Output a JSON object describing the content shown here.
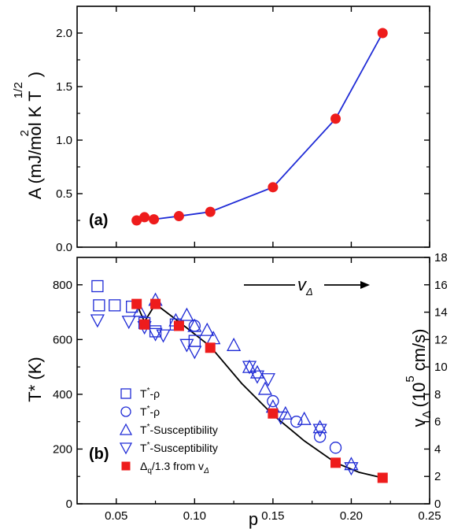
{
  "colors": {
    "blue": "#1f2bd6",
    "red": "#ee1c1c",
    "black": "#000000"
  },
  "chart_data": [
    {
      "panel": "top",
      "type": "line",
      "panel_label": "(a)",
      "ylabel": {
        "main": "A (mJ/mol K T",
        "sup1": "2",
        "sup2": "1/2",
        "close": ")"
      },
      "xlim": [
        0.025,
        0.25
      ],
      "ylim": [
        0.0,
        2.25
      ],
      "yticks": [
        "0.0",
        "0.5",
        "1.0",
        "1.5",
        "2.0"
      ],
      "series": [
        {
          "marker": "circle-filled",
          "color": "#ee1c1c",
          "line_color": "#1f2bd6",
          "x": [
            0.063,
            0.068,
            0.074,
            0.09,
            0.11,
            0.15,
            0.19,
            0.22
          ],
          "y": [
            0.25,
            0.28,
            0.26,
            0.29,
            0.33,
            0.56,
            1.2,
            2.0
          ]
        }
      ]
    },
    {
      "panel": "bottom",
      "type": "scatter",
      "panel_label": "(b)",
      "ylabel": "T* (K)",
      "y2label": {
        "main": "v",
        "sub": "Δ",
        "paren": "(10",
        "sup": "5",
        "unit": "cm/s)"
      },
      "xlabel": "p",
      "xlim": [
        0.025,
        0.25
      ],
      "ylim": [
        0,
        900
      ],
      "y2lim": [
        0,
        18
      ],
      "xticks": [
        "0.05",
        "0.10",
        "0.15",
        "0.20",
        "0.25"
      ],
      "yticks": [
        "0",
        "200",
        "400",
        "600",
        "800"
      ],
      "y2ticks": [
        "0",
        "2",
        "4",
        "6",
        "8",
        "10",
        "12",
        "14",
        "16",
        "18"
      ],
      "annotation": {
        "main": "v",
        "sub": "Δ"
      },
      "legend": [
        {
          "marker": "square-open",
          "main": "T",
          "sup": "*",
          "rest": "-ρ"
        },
        {
          "marker": "circle-open",
          "main": "T",
          "sup": "*",
          "rest": "-ρ"
        },
        {
          "marker": "triangle-up-open",
          "main": "T",
          "sup": "*",
          "rest": "-Susceptibility"
        },
        {
          "marker": "triangle-down-open",
          "main": "T",
          "sup": "*",
          "rest": "-Susceptibility"
        },
        {
          "marker": "square-filled",
          "main": "Δ",
          "sub": "q",
          "rest": "/1.3 from v",
          "sub2": "Δ"
        }
      ],
      "series": [
        {
          "marker": "square-open",
          "color": "#1f2bd6",
          "x": [
            0.038,
            0.039,
            0.049,
            0.06,
            0.068,
            0.075,
            0.088,
            0.1
          ],
          "y": [
            795,
            725,
            725,
            720,
            660,
            630,
            655,
            595
          ]
        },
        {
          "marker": "circle-open",
          "color": "#1f2bd6",
          "x": [
            0.1,
            0.15,
            0.165,
            0.18,
            0.19
          ],
          "y": [
            650,
            375,
            300,
            245,
            205
          ]
        },
        {
          "marker": "triangle-up-open",
          "color": "#1f2bd6",
          "x": [
            0.065,
            0.075,
            0.088,
            0.095,
            0.1,
            0.108,
            0.112,
            0.125,
            0.135,
            0.14,
            0.145,
            0.15,
            0.158,
            0.17,
            0.18,
            0.2
          ],
          "y": [
            705,
            745,
            670,
            690,
            650,
            635,
            605,
            580,
            500,
            480,
            420,
            355,
            330,
            310,
            280,
            145
          ]
        },
        {
          "marker": "triangle-down-open",
          "color": "#1f2bd6",
          "x": [
            0.038,
            0.058,
            0.068,
            0.075,
            0.08,
            0.095,
            0.1,
            0.135,
            0.14,
            0.147,
            0.155,
            0.18,
            0.2
          ],
          "y": [
            670,
            665,
            645,
            620,
            615,
            580,
            555,
            500,
            465,
            455,
            315,
            270,
            130
          ]
        },
        {
          "marker": "square-filled",
          "color": "#ee1c1c",
          "x": [
            0.063,
            0.068,
            0.075,
            0.09,
            0.11,
            0.15,
            0.19,
            0.22
          ],
          "y": [
            730,
            655,
            730,
            650,
            570,
            330,
            150,
            95
          ]
        }
      ],
      "fit_line": {
        "color": "#000000",
        "x": [
          0.063,
          0.068,
          0.075,
          0.09,
          0.11,
          0.13,
          0.15,
          0.17,
          0.19,
          0.205,
          0.22
        ],
        "y": [
          730,
          665,
          730,
          665,
          575,
          440,
          325,
          230,
          150,
          115,
          95
        ]
      }
    }
  ]
}
